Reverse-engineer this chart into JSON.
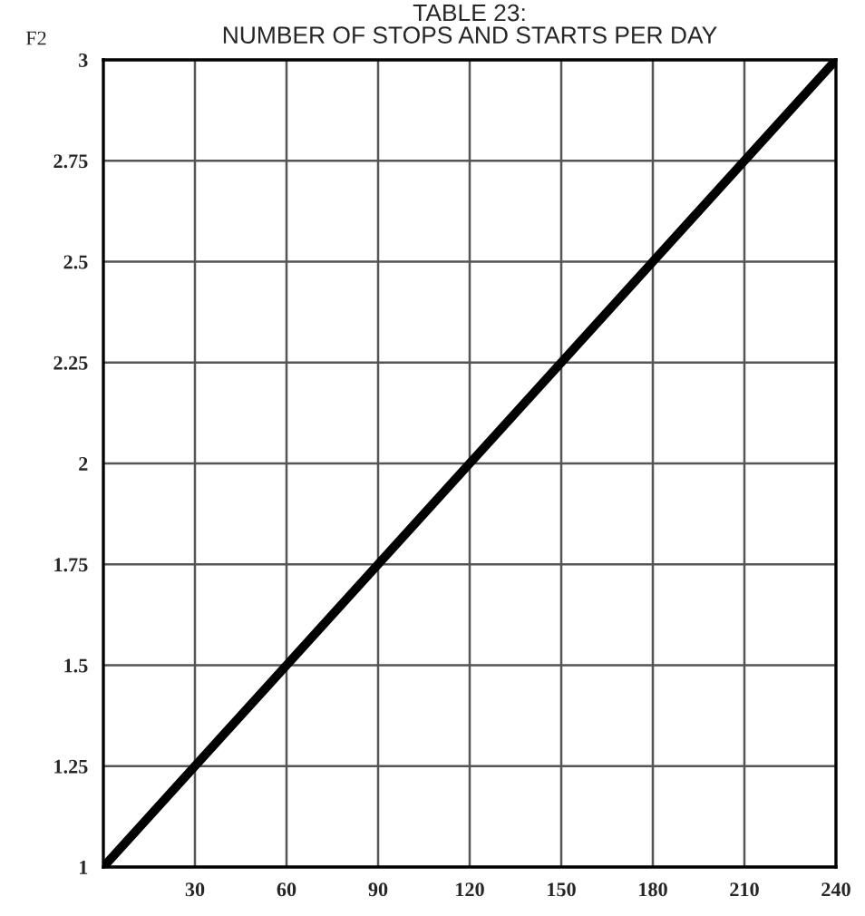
{
  "chart_data": {
    "type": "line",
    "title": "TABLE 23:\nNUMBER OF STOPS AND STARTS PER DAY",
    "ylabel": "F2",
    "x": [
      0,
      240
    ],
    "series": [
      {
        "color": "#000000",
        "values": [
          1,
          3
        ]
      }
    ],
    "xlim": [
      0,
      240
    ],
    "xticks": [
      30,
      60,
      90,
      120,
      150,
      180,
      210,
      240
    ],
    "ylim": [
      1,
      3
    ],
    "yticks": [
      1,
      1.25,
      1.5,
      1.75,
      2,
      2.25,
      2.5,
      2.75,
      3
    ],
    "grid": true,
    "line_style": "solid"
  }
}
